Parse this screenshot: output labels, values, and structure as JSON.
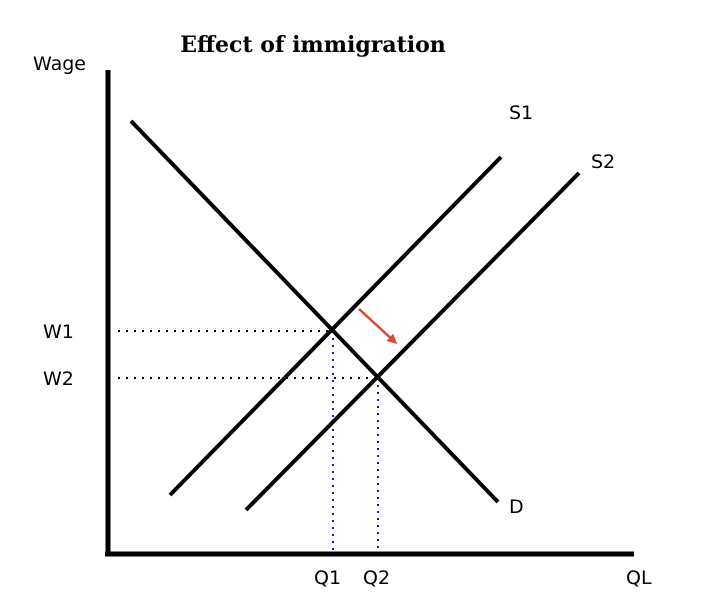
{
  "diagram": {
    "title": "Effect of immigration",
    "y_axis_label": "Wage",
    "x_axis_label": "QL",
    "curves": {
      "supply_1": "S1",
      "supply_2": "S2",
      "demand": "D"
    },
    "y_ticks": [
      "W1",
      "W2"
    ],
    "x_ticks": [
      "Q1",
      "Q2"
    ],
    "colors": {
      "lines": "#000000",
      "vertical_guides": "#1a1aaa",
      "shift_arrow": "#d94a2e"
    }
  }
}
